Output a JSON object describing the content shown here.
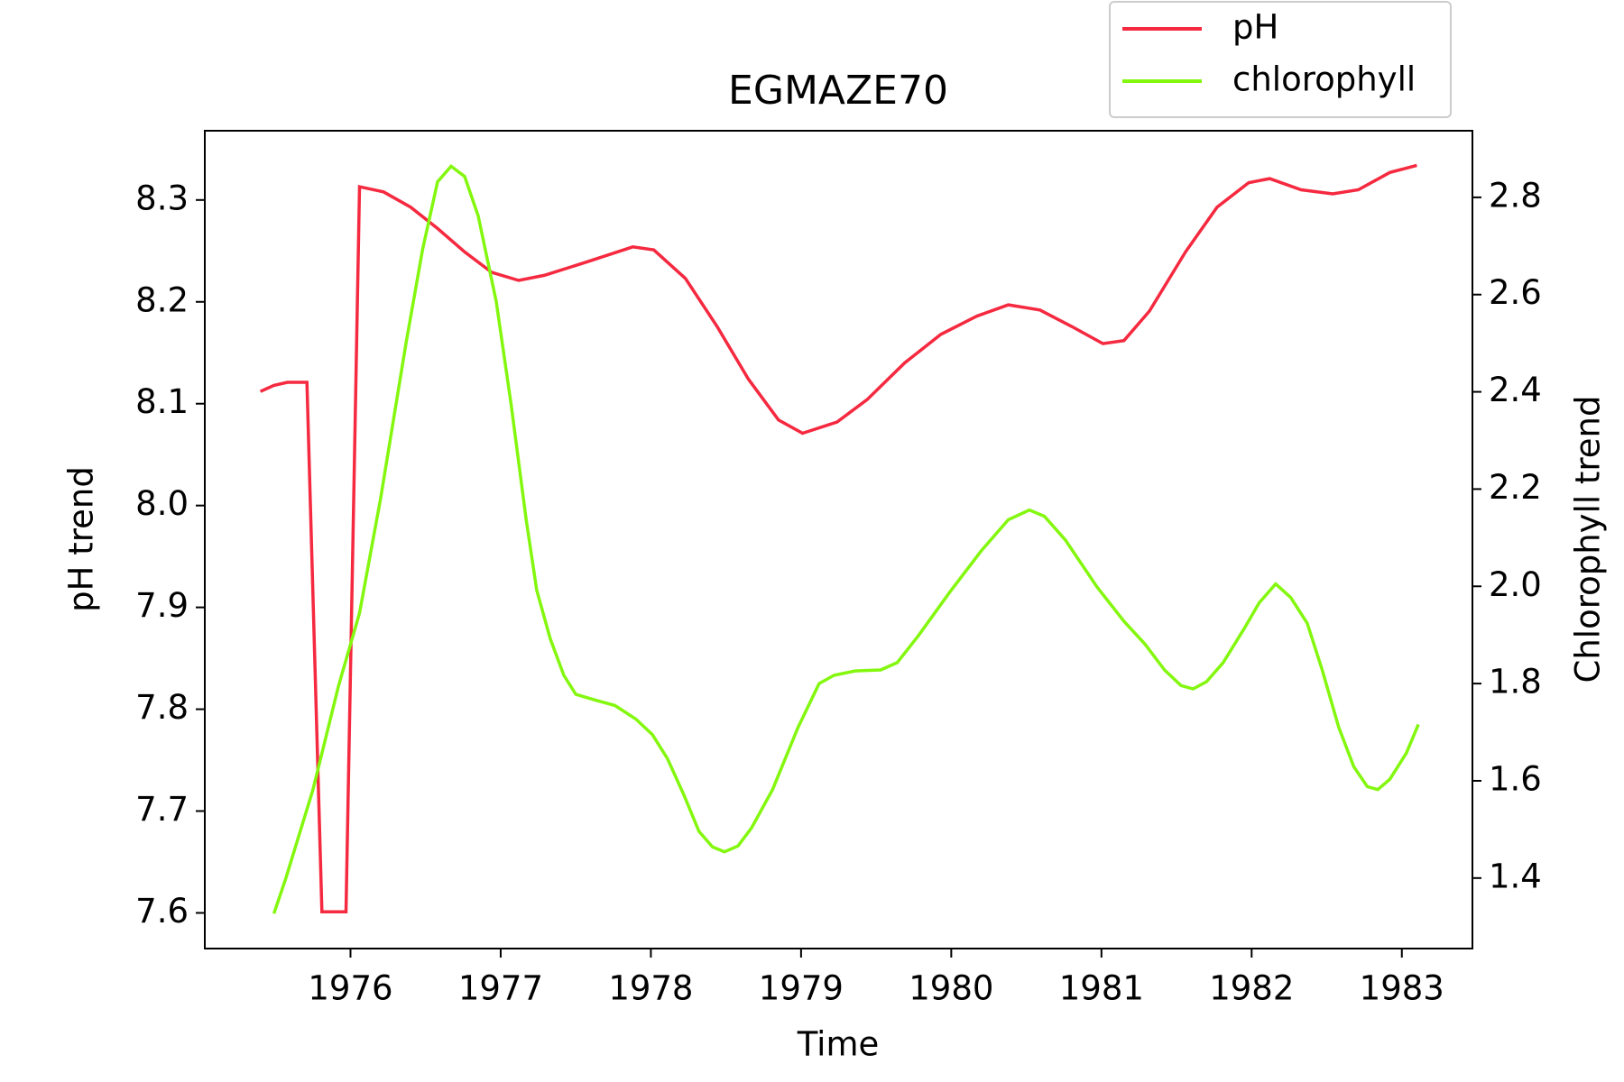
{
  "chart_data": {
    "type": "line",
    "title": "EGMAZE70",
    "x_label": "Time",
    "y_label": "pH trend",
    "y2_label": "Chlorophyll trend",
    "legend": "upper right",
    "xlim": [
      1975.03,
      1983.47
    ],
    "xticks": [
      1976,
      1977,
      1978,
      1979,
      1980,
      1981,
      1982,
      1983
    ],
    "ylim": [
      7.565,
      8.368
    ],
    "yticks": [
      7.6,
      7.7,
      7.8,
      7.9,
      {
        "value": 8,
        "label": "8.0"
      },
      8.1,
      8.2,
      8.3
    ],
    "y2lim": [
      1.255,
      2.937
    ],
    "y2ticks": [
      1.4,
      1.6,
      1.8,
      {
        "value": 2,
        "label": "2.0"
      },
      2.2,
      2.4,
      2.6,
      2.8
    ],
    "series": [
      {
        "name": "pH",
        "color": "#f5293f",
        "axis": "y",
        "x": [
          1975.4,
          1975.49,
          1975.58,
          1975.71,
          1975.81,
          1975.97,
          1976.06,
          1976.22,
          1976.4,
          1976.58,
          1976.76,
          1976.94,
          1977.12,
          1977.29,
          1977.57,
          1977.88,
          1978.02,
          1978.23,
          1978.44,
          1978.65,
          1978.85,
          1979.01,
          1979.24,
          1979.44,
          1979.69,
          1979.93,
          1980.17,
          1980.38,
          1980.59,
          1980.8,
          1981.01,
          1981.15,
          1981.32,
          1981.56,
          1981.77,
          1981.98,
          1982.12,
          1982.33,
          1982.54,
          1982.71,
          1982.92,
          1983.1
        ],
        "values": [
          8.112,
          8.118,
          8.121,
          8.121,
          7.601,
          7.601,
          8.313,
          8.308,
          8.293,
          8.272,
          8.249,
          8.229,
          8.221,
          8.226,
          8.239,
          8.254,
          8.251,
          8.223,
          8.176,
          8.124,
          8.084,
          8.071,
          8.082,
          8.104,
          8.14,
          8.168,
          8.186,
          8.197,
          8.192,
          8.176,
          8.159,
          8.162,
          8.191,
          8.249,
          8.293,
          8.317,
          8.321,
          8.31,
          8.306,
          8.31,
          8.327,
          8.334
        ]
      },
      {
        "name": "chlorophyll",
        "color": "#84f70f",
        "axis": "y2",
        "x": [
          1975.49,
          1975.57,
          1975.75,
          1975.92,
          1976.06,
          1976.2,
          1976.37,
          1976.48,
          1976.58,
          1976.67,
          1976.76,
          1976.85,
          1976.97,
          1977.07,
          1977.17,
          1977.24,
          1977.33,
          1977.42,
          1977.5,
          1977.63,
          1977.76,
          1977.9,
          1978.01,
          1978.11,
          1978.22,
          1978.32,
          1978.41,
          1978.49,
          1978.58,
          1978.67,
          1978.81,
          1978.98,
          1979.12,
          1979.22,
          1979.36,
          1979.53,
          1979.64,
          1979.78,
          1979.99,
          1980.2,
          1980.38,
          1980.52,
          1980.62,
          1980.76,
          1980.97,
          1981.15,
          1981.29,
          1981.42,
          1981.53,
          1981.61,
          1981.7,
          1981.81,
          1981.95,
          1982.05,
          1982.16,
          1982.26,
          1982.37,
          1982.47,
          1982.58,
          1982.68,
          1982.77,
          1982.84,
          1982.92,
          1983.03,
          1983.11
        ],
        "values": [
          1.327,
          1.4,
          1.582,
          1.795,
          1.945,
          2.18,
          2.501,
          2.693,
          2.832,
          2.864,
          2.843,
          2.762,
          2.586,
          2.373,
          2.137,
          1.992,
          1.892,
          1.817,
          1.778,
          1.766,
          1.755,
          1.727,
          1.695,
          1.646,
          1.571,
          1.496,
          1.464,
          1.454,
          1.466,
          1.503,
          1.582,
          1.71,
          1.8,
          1.817,
          1.826,
          1.828,
          1.843,
          1.898,
          1.988,
          2.073,
          2.137,
          2.157,
          2.144,
          2.095,
          1.999,
          1.928,
          1.881,
          1.828,
          1.796,
          1.789,
          1.804,
          1.843,
          1.913,
          1.966,
          2.005,
          1.977,
          1.924,
          1.828,
          1.71,
          1.629,
          1.588,
          1.582,
          1.603,
          1.657,
          1.716
        ]
      }
    ]
  }
}
